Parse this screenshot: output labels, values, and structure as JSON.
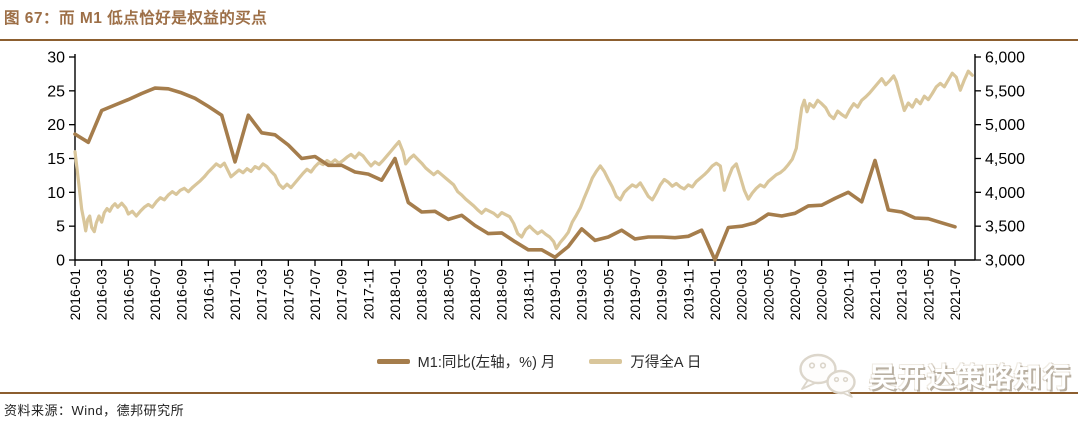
{
  "header": {
    "title": "图 67：而 M1 低点恰好是权益的买点"
  },
  "footer": {
    "source": "资料来源：Wind，德邦研究所",
    "watermark": "吴开达策略知行"
  },
  "colors": {
    "accent_brown": "#9d6f47",
    "rule_brown": "#8c5e2f",
    "m1_line": "#a57d4c",
    "index_line": "#d9c69b",
    "axis_black": "#000000"
  },
  "chart_data": {
    "type": "line",
    "title": "",
    "legend_position": "bottom",
    "grid": false,
    "x_axis": {
      "unit": "month",
      "labels": [
        "2016-01",
        "2016-03",
        "2016-05",
        "2016-07",
        "2016-09",
        "2016-11",
        "2017-01",
        "2017-03",
        "2017-05",
        "2017-07",
        "2017-09",
        "2017-11",
        "2018-01",
        "2018-03",
        "2018-05",
        "2018-07",
        "2018-09",
        "2018-11",
        "2019-01",
        "2019-03",
        "2019-05",
        "2019-07",
        "2019-09",
        "2019-11",
        "2020-01",
        "2020-03",
        "2020-05",
        "2020-07",
        "2020-09",
        "2020-11",
        "2021-01",
        "2021-03",
        "2021-05",
        "2021-07"
      ],
      "label_step_months": 2
    },
    "left_axis": {
      "ticks": [
        0,
        5,
        10,
        15,
        20,
        25,
        30
      ],
      "range": [
        0,
        30
      ]
    },
    "right_axis": {
      "tick_labels": [
        "3,000",
        "3,500",
        "4,000",
        "4,500",
        "5,000",
        "5,500",
        "6,000"
      ],
      "range": [
        3000,
        6000
      ]
    },
    "series": [
      {
        "name": "M1:同比(左轴，%) 月",
        "axis": "left",
        "color": "#a57d4c",
        "frequency": "monthly",
        "start": "2016-01",
        "values": [
          18.6,
          17.4,
          22.1,
          22.9,
          23.7,
          24.6,
          25.4,
          25.3,
          24.7,
          23.9,
          22.7,
          21.4,
          14.5,
          21.4,
          18.8,
          18.5,
          17.0,
          15.0,
          15.3,
          14.0,
          14.0,
          13.0,
          12.7,
          11.8,
          15.0,
          8.5,
          7.1,
          7.2,
          6.0,
          6.6,
          5.1,
          3.9,
          4.0,
          2.7,
          1.5,
          1.5,
          0.4,
          2.0,
          4.6,
          2.9,
          3.4,
          4.4,
          3.1,
          3.4,
          3.4,
          3.3,
          3.5,
          4.4,
          0.0,
          4.8,
          5.0,
          5.5,
          6.8,
          6.5,
          6.9,
          8.0,
          8.1,
          9.1,
          10.0,
          8.6,
          14.7,
          7.4,
          7.1,
          6.2,
          6.1,
          5.5,
          4.9
        ]
      },
      {
        "name": "万得全A 日",
        "axis": "right",
        "color": "#d9c69b",
        "frequency": "daily_approx",
        "points_month_value": [
          [
            0.0,
            4600
          ],
          [
            0.15,
            4350
          ],
          [
            0.3,
            4100
          ],
          [
            0.5,
            3750
          ],
          [
            0.65,
            3600
          ],
          [
            0.8,
            3430
          ],
          [
            0.95,
            3600
          ],
          [
            1.1,
            3650
          ],
          [
            1.25,
            3480
          ],
          [
            1.45,
            3420
          ],
          [
            1.6,
            3550
          ],
          [
            1.8,
            3650
          ],
          [
            2.0,
            3560
          ],
          [
            2.2,
            3700
          ],
          [
            2.4,
            3760
          ],
          [
            2.6,
            3720
          ],
          [
            2.8,
            3790
          ],
          [
            3.0,
            3830
          ],
          [
            3.2,
            3780
          ],
          [
            3.5,
            3840
          ],
          [
            3.8,
            3770
          ],
          [
            4.0,
            3680
          ],
          [
            4.3,
            3720
          ],
          [
            4.6,
            3650
          ],
          [
            4.9,
            3720
          ],
          [
            5.2,
            3780
          ],
          [
            5.5,
            3820
          ],
          [
            5.8,
            3780
          ],
          [
            6.1,
            3860
          ],
          [
            6.4,
            3920
          ],
          [
            6.7,
            3890
          ],
          [
            7.0,
            3960
          ],
          [
            7.3,
            4010
          ],
          [
            7.6,
            3970
          ],
          [
            7.9,
            4030
          ],
          [
            8.2,
            4060
          ],
          [
            8.5,
            4010
          ],
          [
            8.8,
            4070
          ],
          [
            9.1,
            4120
          ],
          [
            9.4,
            4170
          ],
          [
            9.7,
            4230
          ],
          [
            10.0,
            4300
          ],
          [
            10.3,
            4360
          ],
          [
            10.6,
            4420
          ],
          [
            10.9,
            4380
          ],
          [
            11.2,
            4430
          ],
          [
            11.4,
            4350
          ],
          [
            11.7,
            4230
          ],
          [
            12.0,
            4280
          ],
          [
            12.3,
            4330
          ],
          [
            12.6,
            4290
          ],
          [
            12.9,
            4350
          ],
          [
            13.2,
            4310
          ],
          [
            13.5,
            4380
          ],
          [
            13.8,
            4350
          ],
          [
            14.1,
            4420
          ],
          [
            14.4,
            4380
          ],
          [
            14.7,
            4310
          ],
          [
            15.0,
            4250
          ],
          [
            15.3,
            4120
          ],
          [
            15.6,
            4060
          ],
          [
            15.9,
            4120
          ],
          [
            16.2,
            4070
          ],
          [
            16.5,
            4140
          ],
          [
            16.8,
            4210
          ],
          [
            17.1,
            4280
          ],
          [
            17.4,
            4340
          ],
          [
            17.7,
            4300
          ],
          [
            18.0,
            4380
          ],
          [
            18.3,
            4440
          ],
          [
            18.6,
            4410
          ],
          [
            18.9,
            4470
          ],
          [
            19.2,
            4430
          ],
          [
            19.5,
            4480
          ],
          [
            19.8,
            4430
          ],
          [
            20.1,
            4470
          ],
          [
            20.4,
            4520
          ],
          [
            20.7,
            4560
          ],
          [
            21.0,
            4510
          ],
          [
            21.3,
            4580
          ],
          [
            21.6,
            4540
          ],
          [
            21.9,
            4460
          ],
          [
            22.2,
            4390
          ],
          [
            22.5,
            4450
          ],
          [
            22.8,
            4410
          ],
          [
            23.1,
            4470
          ],
          [
            23.4,
            4540
          ],
          [
            23.7,
            4610
          ],
          [
            24.0,
            4680
          ],
          [
            24.3,
            4750
          ],
          [
            24.6,
            4600
          ],
          [
            24.8,
            4420
          ],
          [
            25.1,
            4500
          ],
          [
            25.4,
            4550
          ],
          [
            25.7,
            4490
          ],
          [
            26.0,
            4430
          ],
          [
            26.3,
            4360
          ],
          [
            26.6,
            4310
          ],
          [
            26.9,
            4260
          ],
          [
            27.2,
            4310
          ],
          [
            27.5,
            4260
          ],
          [
            27.8,
            4210
          ],
          [
            28.1,
            4160
          ],
          [
            28.4,
            4110
          ],
          [
            28.7,
            4010
          ],
          [
            29.0,
            3960
          ],
          [
            29.3,
            3900
          ],
          [
            29.6,
            3850
          ],
          [
            29.9,
            3800
          ],
          [
            30.2,
            3740
          ],
          [
            30.5,
            3690
          ],
          [
            30.8,
            3750
          ],
          [
            31.1,
            3720
          ],
          [
            31.4,
            3690
          ],
          [
            31.7,
            3640
          ],
          [
            32.0,
            3700
          ],
          [
            32.3,
            3670
          ],
          [
            32.6,
            3640
          ],
          [
            32.9,
            3540
          ],
          [
            33.2,
            3390
          ],
          [
            33.5,
            3340
          ],
          [
            33.8,
            3450
          ],
          [
            34.1,
            3500
          ],
          [
            34.4,
            3440
          ],
          [
            34.7,
            3390
          ],
          [
            35.0,
            3430
          ],
          [
            35.3,
            3380
          ],
          [
            35.6,
            3340
          ],
          [
            35.9,
            3270
          ],
          [
            36.1,
            3170
          ],
          [
            36.4,
            3260
          ],
          [
            36.7,
            3330
          ],
          [
            37.0,
            3410
          ],
          [
            37.3,
            3560
          ],
          [
            37.6,
            3660
          ],
          [
            37.9,
            3770
          ],
          [
            38.2,
            3920
          ],
          [
            38.5,
            4060
          ],
          [
            38.8,
            4210
          ],
          [
            39.1,
            4310
          ],
          [
            39.4,
            4390
          ],
          [
            39.7,
            4310
          ],
          [
            40.0,
            4190
          ],
          [
            40.3,
            4080
          ],
          [
            40.6,
            3940
          ],
          [
            40.9,
            3890
          ],
          [
            41.2,
            4000
          ],
          [
            41.5,
            4060
          ],
          [
            41.8,
            4110
          ],
          [
            42.1,
            4080
          ],
          [
            42.4,
            4140
          ],
          [
            42.7,
            4040
          ],
          [
            43.0,
            3940
          ],
          [
            43.3,
            3890
          ],
          [
            43.6,
            3990
          ],
          [
            43.9,
            4110
          ],
          [
            44.2,
            4190
          ],
          [
            44.5,
            4150
          ],
          [
            44.8,
            4090
          ],
          [
            45.1,
            4130
          ],
          [
            45.4,
            4080
          ],
          [
            45.7,
            4050
          ],
          [
            46.0,
            4110
          ],
          [
            46.3,
            4080
          ],
          [
            46.6,
            4160
          ],
          [
            46.9,
            4210
          ],
          [
            47.2,
            4260
          ],
          [
            47.5,
            4320
          ],
          [
            47.8,
            4390
          ],
          [
            48.1,
            4430
          ],
          [
            48.4,
            4390
          ],
          [
            48.7,
            4030
          ],
          [
            49.0,
            4210
          ],
          [
            49.3,
            4360
          ],
          [
            49.6,
            4420
          ],
          [
            49.9,
            4230
          ],
          [
            50.2,
            4030
          ],
          [
            50.5,
            3900
          ],
          [
            50.8,
            3990
          ],
          [
            51.1,
            4060
          ],
          [
            51.4,
            4110
          ],
          [
            51.7,
            4080
          ],
          [
            52.0,
            4160
          ],
          [
            52.3,
            4210
          ],
          [
            52.6,
            4260
          ],
          [
            52.9,
            4290
          ],
          [
            53.2,
            4340
          ],
          [
            53.5,
            4410
          ],
          [
            53.8,
            4490
          ],
          [
            54.1,
            4650
          ],
          [
            54.3,
            4960
          ],
          [
            54.5,
            5250
          ],
          [
            54.7,
            5360
          ],
          [
            54.9,
            5190
          ],
          [
            55.1,
            5310
          ],
          [
            55.4,
            5260
          ],
          [
            55.7,
            5360
          ],
          [
            56.0,
            5310
          ],
          [
            56.3,
            5250
          ],
          [
            56.6,
            5140
          ],
          [
            56.9,
            5090
          ],
          [
            57.2,
            5200
          ],
          [
            57.5,
            5150
          ],
          [
            57.8,
            5110
          ],
          [
            58.1,
            5220
          ],
          [
            58.4,
            5310
          ],
          [
            58.7,
            5260
          ],
          [
            59.0,
            5360
          ],
          [
            59.3,
            5410
          ],
          [
            59.6,
            5470
          ],
          [
            59.9,
            5540
          ],
          [
            60.2,
            5610
          ],
          [
            60.5,
            5680
          ],
          [
            60.8,
            5590
          ],
          [
            61.1,
            5650
          ],
          [
            61.4,
            5720
          ],
          [
            61.6,
            5640
          ],
          [
            61.9,
            5420
          ],
          [
            62.2,
            5210
          ],
          [
            62.5,
            5320
          ],
          [
            62.8,
            5260
          ],
          [
            63.1,
            5370
          ],
          [
            63.4,
            5310
          ],
          [
            63.7,
            5420
          ],
          [
            64.0,
            5370
          ],
          [
            64.3,
            5460
          ],
          [
            64.6,
            5560
          ],
          [
            64.9,
            5610
          ],
          [
            65.2,
            5560
          ],
          [
            65.5,
            5660
          ],
          [
            65.8,
            5760
          ],
          [
            66.1,
            5700
          ],
          [
            66.4,
            5510
          ],
          [
            66.7,
            5660
          ],
          [
            67.0,
            5790
          ],
          [
            67.3,
            5730
          ]
        ]
      }
    ]
  }
}
